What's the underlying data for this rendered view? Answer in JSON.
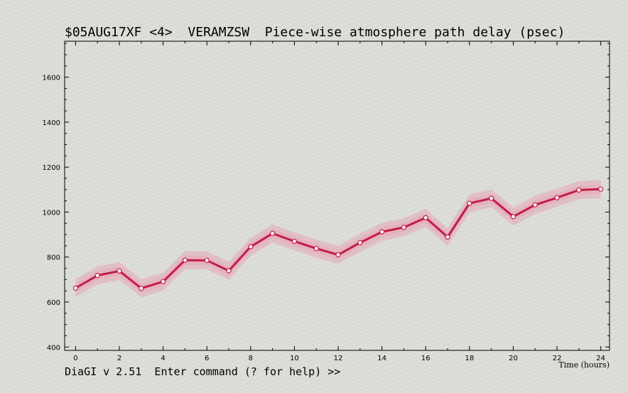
{
  "window": {
    "title": "$05AUG17XF <4>  VERAMZSW  Piece-wise atmosphere path delay (psec)",
    "prompt": "DiaGI v 2.51  Enter command (? for help) >>"
  },
  "colors": {
    "background": "#dcdcd8",
    "line": "#c21d45",
    "band": "#e6a8b8",
    "marker_fill": "#ffffff",
    "frame": "#000000"
  },
  "chart_data": {
    "type": "line",
    "title": "$05AUG17XF <4>  VERAMZSW  Piece-wise atmosphere path delay (psec)",
    "xlabel": "Time (hours)",
    "ylabel": "",
    "xlim": [
      -0.5,
      24.4
    ],
    "ylim": [
      385,
      1760
    ],
    "x_ticks": [
      0,
      2,
      4,
      6,
      8,
      10,
      12,
      14,
      16,
      18,
      20,
      22,
      24
    ],
    "y_ticks": [
      400,
      600,
      800,
      1000,
      1200,
      1400,
      1600
    ],
    "grid": false,
    "series": [
      {
        "x": [
          0,
          1,
          2,
          3,
          4,
          5,
          6,
          7,
          8,
          9,
          10,
          11,
          12,
          13,
          14,
          15,
          16,
          17,
          18,
          19,
          20,
          21,
          22,
          23,
          24
        ],
        "y": [
          662,
          718,
          738,
          661,
          691,
          786,
          785,
          739,
          846,
          905,
          870,
          838,
          810,
          864,
          912,
          932,
          975,
          889,
          1039,
          1061,
          980,
          1032,
          1064,
          1098,
          1102
        ],
        "band": 40
      }
    ]
  }
}
